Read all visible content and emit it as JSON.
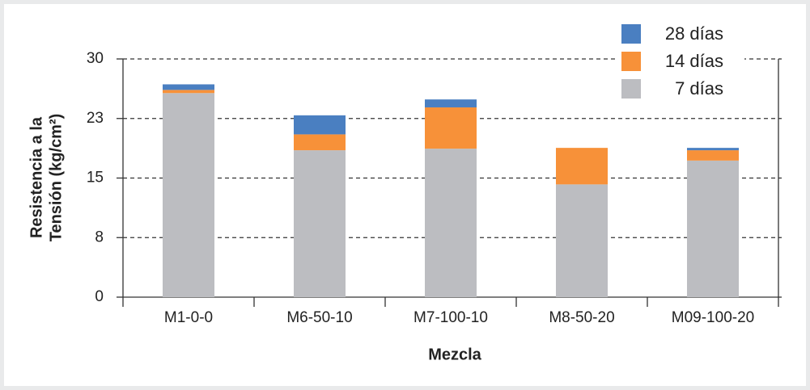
{
  "chart_data": {
    "type": "stacked-bar",
    "ylabel": [
      "Resistencia a la",
      "Tensión (kg/cm²)"
    ],
    "xlabel": "Mezcla",
    "categories": [
      "M1-0-0",
      "M6-50-10",
      "M7-100-10",
      "M8-50-20",
      "M09-100-20"
    ],
    "series": [
      {
        "name": "7 días",
        "color": "#bcbdc1",
        "values": [
          25.7,
          18.5,
          18.7,
          14.2,
          17.2
        ]
      },
      {
        "name": "14 días",
        "color": "#f79139",
        "values": [
          0.4,
          2.0,
          5.2,
          4.6,
          1.3
        ]
      },
      {
        "name": "28 días",
        "color": "#4a7fc1",
        "values": [
          0.7,
          2.4,
          1.0,
          0,
          0.3
        ]
      }
    ],
    "ylim": [
      0,
      30
    ],
    "yticks": [
      0,
      {
        "value": 7.5,
        "label": "8"
      },
      15,
      {
        "value": 22.5,
        "label": "23"
      },
      30
    ],
    "grid": true,
    "legend": "top-right"
  }
}
